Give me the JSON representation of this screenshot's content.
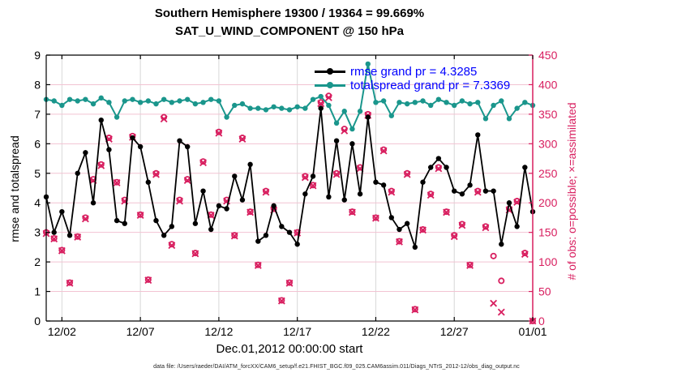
{
  "title1": "Southern Hemisphere 19300 / 19364 = 99.669%",
  "title2": "SAT_U_WIND_COMPONENT @ 150 hPa",
  "footer": "data file: /Users/raeder/DAI/ATM_forcXX/CAM6_setup/f.e21.FHIST_BGC.f09_025.CAM6assim.011/Diags_NTrS_2012-12/obs_diag_output.nc",
  "legend": {
    "rmse": "rmse grand pr = 4.3285",
    "totalspread": "totalspread grand pr = 7.3369"
  },
  "colors": {
    "rmse": "#000000",
    "totalspread": "#1a968c",
    "obs": "#d81e5f",
    "legend_text": "#0000ff",
    "grid_h": "#f2c3d2",
    "grid_v": "#d8d8d8"
  },
  "chart_data": {
    "type": "line+scatter",
    "title": "Southern Hemisphere 19300 / 19364 = 99.669% | SAT_U_WIND_COMPONENT @ 150 hPa",
    "x_axis": {
      "label": "Dec.01,2012 00:00:00 start",
      "range_days": [
        0,
        31
      ],
      "ticks": [
        {
          "day": 1,
          "label": "12/02"
        },
        {
          "day": 6,
          "label": "12/07"
        },
        {
          "day": 11,
          "label": "12/12"
        },
        {
          "day": 16,
          "label": "12/17"
        },
        {
          "day": 21,
          "label": "12/22"
        },
        {
          "day": 26,
          "label": "12/27"
        },
        {
          "day": 31,
          "label": "01/01"
        }
      ]
    },
    "left_axis": {
      "label": "rmse and totalspread",
      "min": 0,
      "max": 9,
      "ticks": [
        0,
        1,
        2,
        3,
        4,
        5,
        6,
        7,
        8,
        9
      ]
    },
    "right_axis": {
      "label": "# of obs: o=possible; ×=assimilated",
      "min": 0,
      "max": 450,
      "ticks": [
        0,
        50,
        100,
        150,
        200,
        250,
        300,
        350,
        400,
        450
      ]
    },
    "t_days": [
      0,
      0.5,
      1,
      1.5,
      2,
      2.5,
      3,
      3.5,
      4,
      4.5,
      5,
      5.5,
      6,
      6.5,
      7,
      7.5,
      8,
      8.5,
      9,
      9.5,
      10,
      10.5,
      11,
      11.5,
      12,
      12.5,
      13,
      13.5,
      14,
      14.5,
      15,
      15.5,
      16,
      16.5,
      17,
      17.5,
      18,
      18.5,
      19,
      19.5,
      20,
      20.5,
      21,
      21.5,
      22,
      22.5,
      23,
      23.5,
      24,
      24.5,
      25,
      25.5,
      26,
      26.5,
      27,
      27.5,
      28,
      28.5,
      29,
      29.5,
      30,
      30.5,
      31
    ],
    "series": [
      {
        "name": "rmse",
        "grand_mean": 4.3285,
        "values": [
          4.2,
          3.0,
          3.7,
          2.9,
          5.0,
          5.7,
          4.0,
          6.8,
          5.8,
          3.4,
          3.3,
          6.2,
          5.9,
          4.7,
          3.4,
          2.9,
          3.2,
          6.1,
          5.9,
          3.3,
          4.4,
          3.1,
          3.9,
          3.8,
          4.9,
          4.1,
          5.3,
          2.7,
          2.9,
          3.9,
          3.2,
          3.0,
          2.6,
          4.3,
          4.9,
          7.2,
          4.2,
          6.1,
          4.1,
          6.0,
          4.3,
          6.9,
          4.7,
          4.6,
          3.5,
          3.1,
          3.3,
          2.5,
          4.7,
          5.2,
          5.5,
          5.2,
          4.4,
          4.3,
          4.6,
          6.3,
          4.4,
          4.4,
          2.6,
          4.0,
          3.2,
          5.2,
          3.7
        ]
      },
      {
        "name": "totalspread",
        "grand_mean": 7.3369,
        "values": [
          7.5,
          7.45,
          7.3,
          7.5,
          7.45,
          7.5,
          7.35,
          7.55,
          7.4,
          6.9,
          7.45,
          7.5,
          7.4,
          7.45,
          7.35,
          7.5,
          7.4,
          7.45,
          7.5,
          7.35,
          7.4,
          7.5,
          7.45,
          6.9,
          7.3,
          7.35,
          7.2,
          7.2,
          7.15,
          7.25,
          7.2,
          7.15,
          7.25,
          7.2,
          7.5,
          7.6,
          7.3,
          6.7,
          7.1,
          6.5,
          7.1,
          8.7,
          7.4,
          7.45,
          6.95,
          7.4,
          7.35,
          7.4,
          7.45,
          7.3,
          7.5,
          7.4,
          7.3,
          7.45,
          7.35,
          7.4,
          6.85,
          7.3,
          7.45,
          6.85,
          7.2,
          7.4,
          7.3
        ]
      }
    ],
    "counts": {
      "possible": [
        150,
        140,
        120,
        65,
        143,
        175,
        240,
        265,
        310,
        235,
        205,
        313,
        180,
        70,
        250,
        345,
        130,
        205,
        240,
        115,
        270,
        180,
        320,
        205,
        145,
        310,
        185,
        95,
        220,
        190,
        35,
        65,
        150,
        245,
        230,
        370,
        381,
        250,
        325,
        185,
        260,
        350,
        175,
        290,
        220,
        135,
        250,
        20,
        155,
        215,
        260,
        185,
        145,
        164,
        95,
        220,
        160,
        110,
        68,
        190,
        203,
        115,
        0
      ],
      "assimilated": [
        148,
        139,
        119,
        64,
        142,
        173,
        238,
        263,
        308,
        234,
        203,
        311,
        179,
        69,
        248,
        342,
        128,
        203,
        238,
        114,
        268,
        179,
        318,
        203,
        144,
        308,
        184,
        94,
        218,
        188,
        34,
        64,
        149,
        243,
        229,
        368,
        378,
        248,
        322,
        184,
        258,
        348,
        174,
        288,
        218,
        134,
        248,
        19,
        154,
        213,
        258,
        184,
        143,
        162,
        94,
        218,
        158,
        30,
        15,
        188,
        201,
        113,
        0
      ]
    }
  }
}
